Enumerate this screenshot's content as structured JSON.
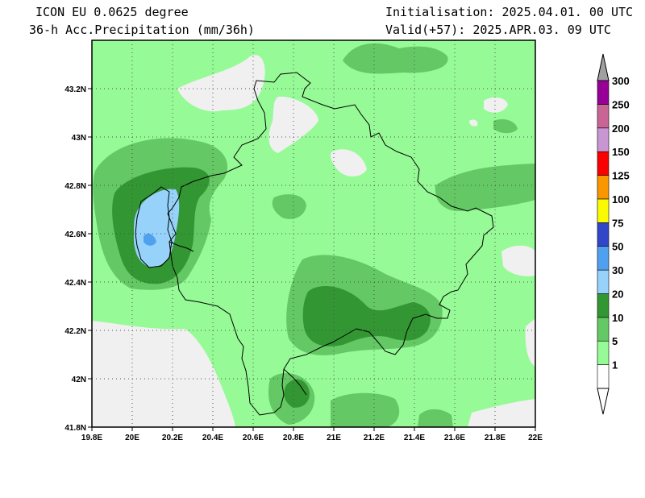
{
  "header": {
    "model": "ICON EU 0.0625 degree",
    "field": "36-h Acc.Precipitation (mm/36h)",
    "init": "Initialisation: 2025.04.01. 00 UTC",
    "valid": "Valid(+57): 2025.APR.03. 09 UTC"
  },
  "map": {
    "lon_range": [
      19.8,
      22.0
    ],
    "lat_range": [
      41.8,
      43.4
    ],
    "x_ticks": [
      "19.8E",
      "20E",
      "20.2E",
      "20.4E",
      "20.6E",
      "20.8E",
      "21E",
      "21.2E",
      "21.4E",
      "21.6E",
      "21.8E",
      "22E"
    ],
    "y_ticks": [
      "41.8N",
      "42N",
      "42.2N",
      "42.4N",
      "42.6N",
      "42.8N",
      "43N",
      "43.2N"
    ],
    "gridlines": "dotted"
  },
  "legend": {
    "unit": "mm/36h",
    "levels": [
      {
        "label": "1",
        "color": "#ffffff"
      },
      {
        "label": "5",
        "color": "#96fa96"
      },
      {
        "label": "10",
        "color": "#64c864"
      },
      {
        "label": "20",
        "color": "#329632"
      },
      {
        "label": "30",
        "color": "#96d2fa"
      },
      {
        "label": "50",
        "color": "#50a0f0"
      },
      {
        "label": "75",
        "color": "#3246c8"
      },
      {
        "label": "100",
        "color": "#fafa00"
      },
      {
        "label": "125",
        "color": "#fa9600"
      },
      {
        "label": "150",
        "color": "#fa0000"
      },
      {
        "label": "200",
        "color": "#c896d2"
      },
      {
        "label": "250",
        "color": "#c86496"
      },
      {
        "label": "300",
        "color": "#960096"
      }
    ],
    "below_min_color": "#ffffff",
    "above_max_color": "#a0a0a0",
    "no_precip_color": "#f0f0f0"
  }
}
